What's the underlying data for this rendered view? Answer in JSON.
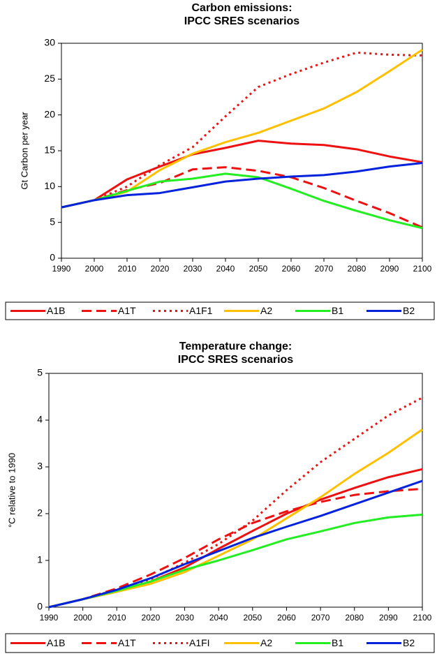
{
  "chart_data": [
    {
      "type": "line",
      "title": "Carbon emissions:",
      "subtitle": "IPCC SRES scenarios",
      "y_label": "Gt Carbon per year",
      "x": [
        1990,
        2000,
        2010,
        2020,
        2030,
        2040,
        2050,
        2060,
        2070,
        2080,
        2090,
        2100
      ],
      "xlim": [
        1990,
        2100
      ],
      "xticks": [
        1990,
        2000,
        2010,
        2020,
        2030,
        2040,
        2050,
        2060,
        2070,
        2080,
        2090,
        2100
      ],
      "ylim": [
        0,
        30
      ],
      "yticks": [
        0,
        5,
        10,
        15,
        20,
        25,
        30
      ],
      "series": [
        {
          "name": "A1B",
          "color": "#ee1111",
          "dash": "solid",
          "values": [
            7.1,
            8.1,
            11,
            12.8,
            14.5,
            15.4,
            16.4,
            16.0,
            15.8,
            15.2,
            14.2,
            13.4
          ]
        },
        {
          "name": "A1T",
          "color": "#ee1111",
          "dash": "dashed",
          "values": [
            7.1,
            8.1,
            9.5,
            10.5,
            12.4,
            12.7,
            12.2,
            11.3,
            9.8,
            8.0,
            6.3,
            4.3
          ]
        },
        {
          "name": "A1F1",
          "color": "#ee1111",
          "dash": "dotted",
          "values": [
            7.1,
            8.1,
            10,
            13,
            15.5,
            19.8,
            23.9,
            25.7,
            27.3,
            28.7,
            28.4,
            28.3
          ]
        },
        {
          "name": "A2",
          "color": "#ffc000",
          "dash": "solid",
          "values": [
            7.1,
            8.1,
            9.3,
            12.3,
            14.6,
            16.2,
            17.5,
            19.2,
            20.9,
            23.2,
            26.1,
            29.1
          ]
        },
        {
          "name": "B1",
          "color": "#22ee22",
          "dash": "solid",
          "values": [
            7.1,
            8.1,
            9.4,
            10.7,
            11.1,
            11.8,
            11.3,
            9.7,
            8.0,
            6.6,
            5.3,
            4.2
          ]
        },
        {
          "name": "B2",
          "color": "#0022dd",
          "dash": "solid",
          "values": [
            7.1,
            8.1,
            8.8,
            9.1,
            9.9,
            10.7,
            11.1,
            11.4,
            11.6,
            12.1,
            12.8,
            13.3
          ]
        }
      ]
    },
    {
      "type": "line",
      "title": "Temperature change:",
      "subtitle": "IPCC SRES scenarios",
      "y_label": "°C relative to 1990",
      "x": [
        1990,
        2000,
        2010,
        2020,
        2030,
        2040,
        2050,
        2060,
        2070,
        2080,
        2090,
        2100
      ],
      "xlim": [
        1990,
        2100
      ],
      "xticks": [
        1990,
        2000,
        2010,
        2020,
        2030,
        2040,
        2050,
        2060,
        2070,
        2080,
        2090,
        2100
      ],
      "ylim": [
        0,
        5
      ],
      "yticks": [
        0,
        1,
        2,
        3,
        4,
        5
      ],
      "series": [
        {
          "name": "A1B",
          "color": "#ee1111",
          "dash": "solid",
          "values": [
            0,
            0.17,
            0.33,
            0.55,
            0.85,
            1.25,
            1.63,
            2.0,
            2.3,
            2.55,
            2.78,
            2.95
          ]
        },
        {
          "name": "A1T",
          "color": "#ee1111",
          "dash": "dashed",
          "values": [
            0,
            0.17,
            0.4,
            0.7,
            1.05,
            1.45,
            1.8,
            2.05,
            2.25,
            2.4,
            2.48,
            2.53
          ]
        },
        {
          "name": "A1FI",
          "color": "#ee1111",
          "dash": "dotted",
          "values": [
            0,
            0.17,
            0.38,
            0.6,
            0.95,
            1.35,
            1.85,
            2.5,
            3.1,
            3.6,
            4.1,
            4.48
          ]
        },
        {
          "name": "A2",
          "color": "#ffc000",
          "dash": "solid",
          "values": [
            0,
            0.17,
            0.33,
            0.5,
            0.75,
            1.1,
            1.45,
            1.9,
            2.35,
            2.85,
            3.3,
            3.8
          ]
        },
        {
          "name": "B1",
          "color": "#22ee22",
          "dash": "solid",
          "values": [
            0,
            0.17,
            0.35,
            0.55,
            0.8,
            1.0,
            1.22,
            1.45,
            1.62,
            1.8,
            1.92,
            1.98
          ]
        },
        {
          "name": "B2",
          "color": "#0022dd",
          "dash": "solid",
          "values": [
            0,
            0.17,
            0.37,
            0.62,
            0.92,
            1.2,
            1.48,
            1.72,
            1.95,
            2.2,
            2.45,
            2.7
          ]
        }
      ]
    }
  ]
}
